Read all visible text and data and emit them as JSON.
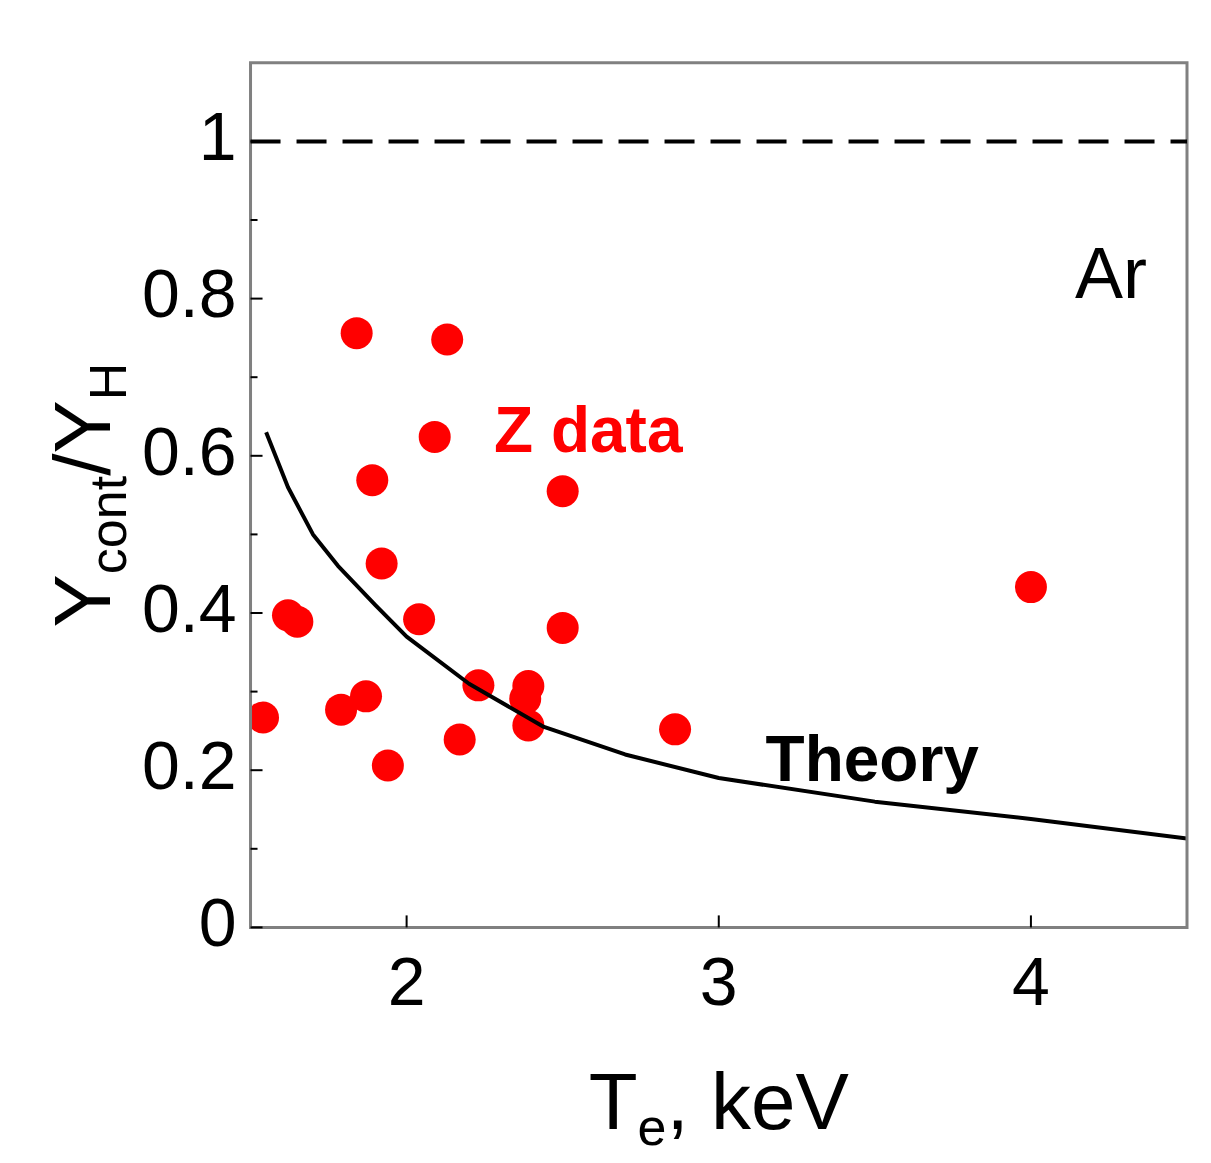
{
  "chart_data": {
    "type": "scatter",
    "xlabel": "T$_{e}$, keV",
    "ylabel": "Y$_{cont}$/Y$_{H}$",
    "xlim": [
      1.5,
      4.5
    ],
    "xticks": [
      2,
      3,
      4
    ],
    "ylim": [
      0,
      1.1
    ],
    "yticks": [
      0,
      {
        "value": 0.1,
        "label": null
      },
      0.2,
      {
        "value": 0.3,
        "label": null
      },
      0.4,
      {
        "value": 0.5,
        "label": null
      },
      0.6,
      {
        "value": 0.7,
        "label": null
      },
      0.8,
      {
        "value": 0.9,
        "label": null
      },
      1
    ],
    "grid": false,
    "legend": false,
    "series": [
      {
        "name": "Z data",
        "color": "#ff0000",
        "marker": "circle",
        "x": [
          1.54,
          1.62,
          1.65,
          1.79,
          1.87,
          1.84,
          2.13,
          2.09,
          1.89,
          1.92,
          2.04,
          1.94,
          2.17,
          2.23,
          2.39,
          2.38,
          2.39,
          2.5,
          2.5,
          2.86,
          4.0
        ],
        "values": [
          0.267,
          0.397,
          0.389,
          0.277,
          0.294,
          0.756,
          0.748,
          0.624,
          0.569,
          0.463,
          0.392,
          0.206,
          0.239,
          0.308,
          0.307,
          0.291,
          0.257,
          0.555,
          0.381,
          0.252,
          0.433
        ]
      },
      {
        "name": "Theory",
        "color": "#000000",
        "type": "line",
        "marker": "none",
        "line_style": "solid",
        "x": [
          1.55,
          1.62,
          1.7,
          1.78,
          1.9,
          2.0,
          2.2,
          2.44,
          2.7,
          3.0,
          3.5,
          4.0,
          4.5
        ],
        "values": [
          0.63,
          0.56,
          0.5,
          0.46,
          0.41,
          0.37,
          0.31,
          0.255,
          0.22,
          0.19,
          0.16,
          0.138,
          0.113
        ]
      }
    ],
    "ref_lines": [
      {
        "axis": "y",
        "value": 1,
        "color": "#000000",
        "line_style": "dashed"
      }
    ],
    "annotations": [
      "Ar"
    ]
  }
}
